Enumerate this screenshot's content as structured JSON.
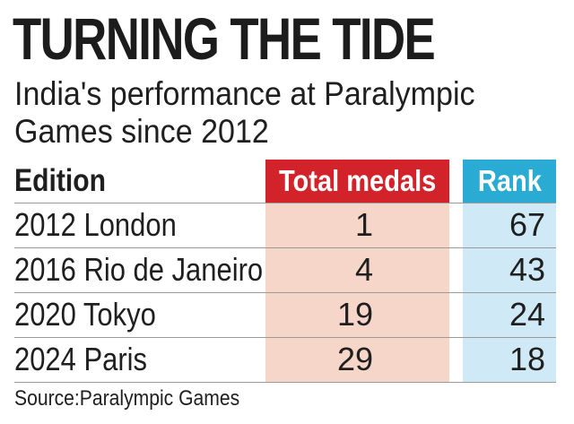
{
  "title": "TURNING THE TIDE",
  "subtitle": {
    "line1": "India's performance at Paralympic",
    "line2": "Games since 2012"
  },
  "colors": {
    "medals_header": "#d2232a",
    "medals_column": "#f6d6c8",
    "rank_header": "#29abd4",
    "rank_column": "#cfeaf6"
  },
  "chart_data": {
    "type": "table",
    "title": "TURNING THE TIDE",
    "subtitle": "India's performance at Paralympic Games since 2012",
    "columns": [
      "Edition",
      "Total medals",
      "Rank"
    ],
    "rows": [
      {
        "edition": "2012 London",
        "medals": "1",
        "rank": "67"
      },
      {
        "edition": "2016 Rio de Janeiro",
        "medals": "4",
        "rank": "43"
      },
      {
        "edition": "2020 Tokyo",
        "medals": "19",
        "rank": "24"
      },
      {
        "edition": "2024 Paris",
        "medals": "29",
        "rank": "18"
      }
    ],
    "source": "Source:Paralympic Games"
  }
}
